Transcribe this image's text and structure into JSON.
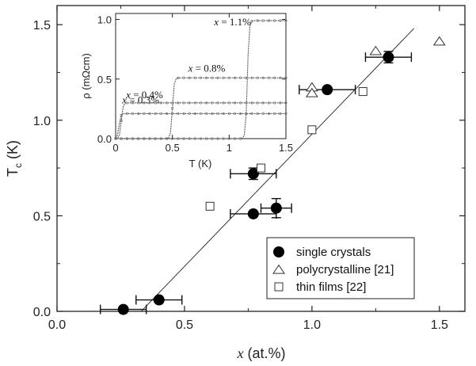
{
  "chart_data": {
    "type": "scatter",
    "xlabel_var": "x",
    "xlabel_unit": " (at.%)",
    "ylabel_main": "T",
    "ylabel_sub": "c",
    "ylabel_unit": " (K)",
    "xlim": [
      0.0,
      1.6
    ],
    "ylim": [
      0.0,
      1.6
    ],
    "x_ticks": [
      "0.0",
      "0.5",
      "1.0",
      "1.5"
    ],
    "y_ticks": [
      "0.0",
      "0.5",
      "1.0",
      "1.5"
    ],
    "fit_line": {
      "x": [
        0.33,
        1.4
      ],
      "y": [
        0.0,
        1.48
      ]
    },
    "series": [
      {
        "name": "single crystals",
        "marker": "filled-circle",
        "points": [
          {
            "x": 0.26,
            "y": 0.01,
            "xerr": 0.09,
            "yerr": 0.0
          },
          {
            "x": 0.4,
            "y": 0.06,
            "xerr": 0.09,
            "yerr": 0.0
          },
          {
            "x": 0.77,
            "y": 0.51,
            "xerr": 0.09,
            "yerr": 0.0
          },
          {
            "x": 0.86,
            "y": 0.54,
            "xerr": 0.06,
            "yerr": 0.05
          },
          {
            "x": 0.77,
            "y": 0.72,
            "xerr": 0.09,
            "yerr": 0.03
          },
          {
            "x": 1.06,
            "y": 1.16,
            "xerr": 0.11,
            "yerr": 0.0
          },
          {
            "x": 1.3,
            "y": 1.33,
            "xerr": 0.09,
            "yerr": 0.03
          }
        ]
      },
      {
        "name": "polycrystalline [21]",
        "marker": "open-triangle",
        "points": [
          {
            "x": 1.0,
            "y": 1.17
          },
          {
            "x": 1.0,
            "y": 1.14
          },
          {
            "x": 1.25,
            "y": 1.36
          },
          {
            "x": 1.5,
            "y": 1.41
          }
        ]
      },
      {
        "name": "thin films [22]",
        "marker": "open-square",
        "points": [
          {
            "x": 0.6,
            "y": 0.55
          },
          {
            "x": 0.8,
            "y": 0.75
          },
          {
            "x": 1.0,
            "y": 0.95
          },
          {
            "x": 1.2,
            "y": 1.15
          }
        ]
      }
    ],
    "legend_position": "bottom-right",
    "inset": {
      "xlabel": "T (K)",
      "ylabel": "ρ (mΩcm)",
      "xlim": [
        0.0,
        1.5
      ],
      "ylim": [
        0.0,
        1.05
      ],
      "x_ticks": [
        "0",
        "0.5",
        "1",
        "1.5"
      ],
      "y_ticks": [
        "0.0",
        "0.5",
        "1.0"
      ],
      "curves": [
        {
          "label_var": "x",
          "label_val": " = 0.3%",
          "tc": 0.03,
          "rho_n": 0.21
        },
        {
          "label_var": "x",
          "label_val": " = 0.4%",
          "tc": 0.05,
          "rho_n": 0.3
        },
        {
          "label_var": "x",
          "label_val": " = 0.8%",
          "tc": 0.5,
          "rho_n": 0.51
        },
        {
          "label_var": "x",
          "label_val": " = 1.1%",
          "tc": 1.16,
          "rho_n": 0.99
        }
      ]
    }
  }
}
